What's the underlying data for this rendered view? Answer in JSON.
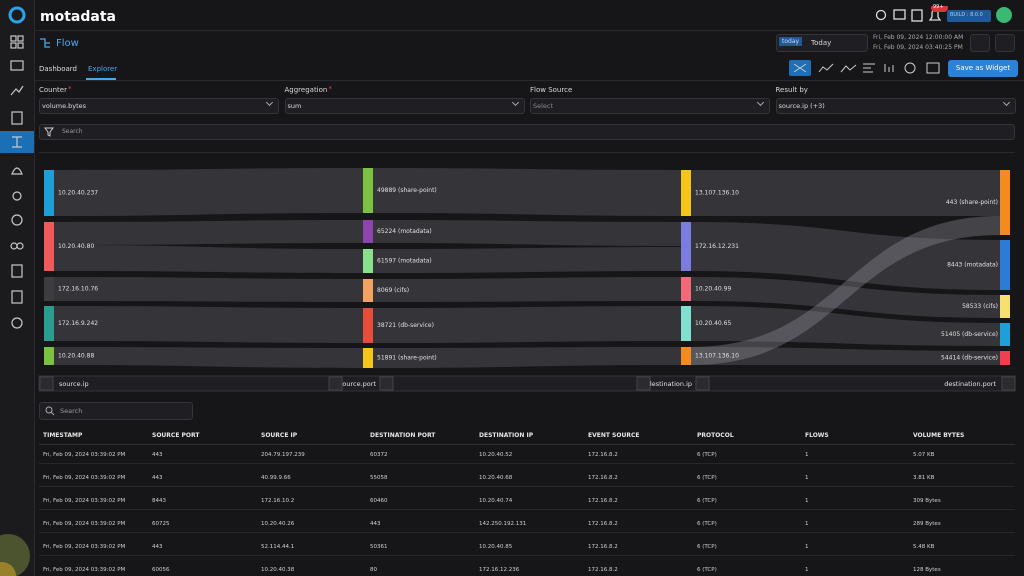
{
  "app": {
    "logo": "motadata",
    "build": "BUILD : 8.0.0",
    "notifications": "99+"
  },
  "header": {
    "title": "Flow",
    "date_chip": "today",
    "date_label": "Today",
    "range_from": "Fri, Feb 09, 2024 12:00:00 AM",
    "range_to": "Fri, Feb 09, 2024 03:40:25 PM"
  },
  "tabs": [
    "Dashboard",
    "Explorer"
  ],
  "save_button": "Save as Widget",
  "filters": [
    {
      "label": "Counter",
      "required": "*",
      "value": "volume.bytes"
    },
    {
      "label": "Aggregation",
      "required": "*",
      "value": "sum"
    },
    {
      "label": "Flow Source",
      "placeholder": "Select"
    },
    {
      "label": "Result by",
      "value": "source.ip (+3)"
    }
  ],
  "search_placeholder": "Search",
  "sankey": {
    "columns": [
      {
        "name": "source.ip",
        "nodes": [
          {
            "label": "10.20.40.237",
            "color": "#1e9fd8"
          },
          {
            "label": "10.20.40.80",
            "color": "#f05a5a"
          },
          {
            "label": "172.16.10.76",
            "color": "#3d3d40"
          },
          {
            "label": "172.16.9.242",
            "color": "#2a9d8f"
          },
          {
            "label": "10.20.40.88",
            "color": "#7dc142"
          }
        ]
      },
      {
        "name": "source.port",
        "nodes": [
          {
            "label": "49889 (share-point)",
            "color": "#7dc142"
          },
          {
            "label": "65224 (motadata)",
            "color": "#8e44ad"
          },
          {
            "label": "61597 (motadata)",
            "color": "#8be08b"
          },
          {
            "label": "8069 (cifs)",
            "color": "#f4a261"
          },
          {
            "label": "38721 (db-service)",
            "color": "#e74c3c"
          },
          {
            "label": "51891 (share-point)",
            "color": "#f5c518"
          }
        ]
      },
      {
        "name": "destination.ip",
        "nodes": [
          {
            "label": "13.107.136.10",
            "color": "#f5c518"
          },
          {
            "label": "172.16.12.231",
            "color": "#7b7be0"
          },
          {
            "label": "10.20.40.99",
            "color": "#f06a7a"
          },
          {
            "label": "10.20.40.65",
            "color": "#7fe0d0"
          },
          {
            "label": "13.107.136.10",
            "color": "#f58b1f"
          }
        ]
      },
      {
        "name": "destination.port",
        "nodes": [
          {
            "label": "443 (share-point)",
            "color": "#f58b1f"
          },
          {
            "label": "8443 (motadata)",
            "color": "#2e7bd6"
          },
          {
            "label": "58533 (cifs)",
            "color": "#f5e070"
          },
          {
            "label": "51405 (db-service)",
            "color": "#1e9fd8"
          },
          {
            "label": "54414 (db-service)",
            "color": "#f04050"
          }
        ]
      }
    ]
  },
  "table": {
    "search_placeholder": "Search",
    "headers": [
      "TIMESTAMP",
      "SOURCE PORT",
      "SOURCE IP",
      "DESTINATION PORT",
      "DESTINATION IP",
      "EVENT SOURCE",
      "PROTOCOL",
      "FLOWS",
      "VOLUME BYTES"
    ],
    "rows": [
      [
        "Fri, Feb 09, 2024 03:39:02 PM",
        "443",
        "204.79.197.239",
        "60372",
        "10.20.40.52",
        "172.16.8.2",
        "6 (TCP)",
        "1",
        "5.07 KB"
      ],
      [
        "Fri, Feb 09, 2024 03:39:02 PM",
        "443",
        "40.99.9.66",
        "55058",
        "10.20.40.68",
        "172.16.8.2",
        "6 (TCP)",
        "1",
        "3.81 KB"
      ],
      [
        "Fri, Feb 09, 2024 03:39:02 PM",
        "8443",
        "172.16.10.2",
        "60460",
        "10.20.40.74",
        "172.16.8.2",
        "6 (TCP)",
        "1",
        "309 Bytes"
      ],
      [
        "Fri, Feb 09, 2024 03:39:02 PM",
        "60725",
        "10.20.40.26",
        "443",
        "142.250.192.131",
        "172.16.8.2",
        "6 (TCP)",
        "1",
        "289 Bytes"
      ],
      [
        "Fri, Feb 09, 2024 03:39:02 PM",
        "443",
        "52.114.44.1",
        "50361",
        "10.20.40.85",
        "172.16.8.2",
        "6 (TCP)",
        "1",
        "5.48 KB"
      ],
      [
        "Fri, Feb 09, 2024 03:39:02 PM",
        "60056",
        "10.20.40.38",
        "80",
        "172.16.12.236",
        "172.16.8.2",
        "6 (TCP)",
        "1",
        "128 Bytes"
      ]
    ]
  }
}
